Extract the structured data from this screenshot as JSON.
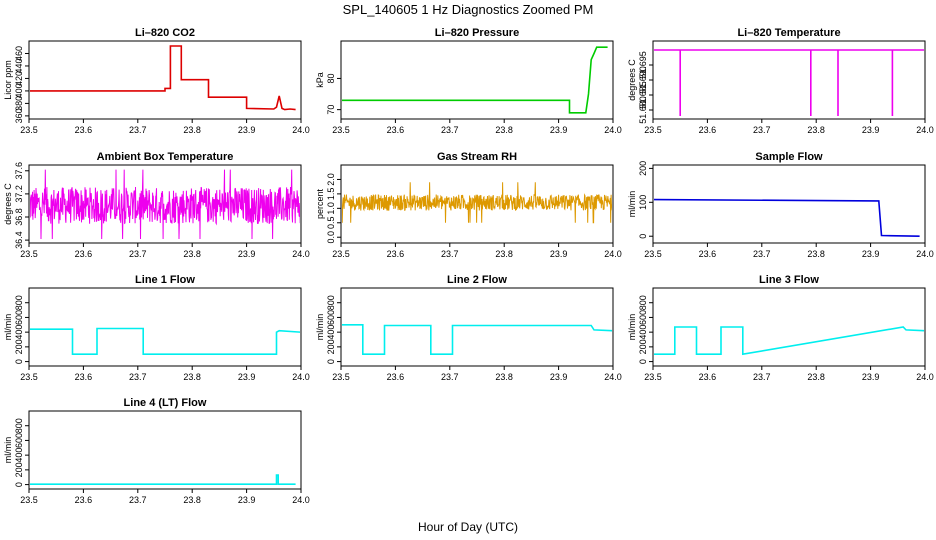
{
  "figure": {
    "title": "SPL_140605  1 Hz Diagnostics Zoomed PM",
    "xlabel": "Hour of Day (UTC)"
  },
  "chart_data": [
    {
      "id": "co2",
      "type": "line",
      "title": "Li–820 CO2",
      "ylabel": "Licor ppm",
      "color": "#dd0000",
      "xlim": [
        23.5,
        24.0
      ],
      "xticks": [
        23.5,
        23.6,
        23.7,
        23.8,
        23.9,
        24.0
      ],
      "ylim": [
        355,
        480
      ],
      "yticks": [
        360,
        380,
        400,
        420,
        440,
        460
      ],
      "x": [
        23.5,
        23.75,
        23.75,
        23.76,
        23.76,
        23.78,
        23.78,
        23.83,
        23.83,
        23.9,
        23.9,
        23.95,
        23.955,
        23.96,
        23.965,
        23.97,
        23.98,
        23.99
      ],
      "y": [
        400,
        400,
        404,
        404,
        472,
        472,
        418,
        418,
        390,
        390,
        372,
        371,
        374,
        392,
        372,
        370,
        371,
        370
      ]
    },
    {
      "id": "pressure",
      "type": "line",
      "title": "Li–820 Pressure",
      "ylabel": "kPa",
      "color": "#00cc00",
      "xlim": [
        23.5,
        24.0
      ],
      "xticks": [
        23.5,
        23.6,
        23.7,
        23.8,
        23.9,
        24.0
      ],
      "ylim": [
        67,
        92
      ],
      "yticks": [
        70,
        80
      ],
      "x": [
        23.5,
        23.92,
        23.92,
        23.95,
        23.955,
        23.96,
        23.965,
        23.97,
        23.98,
        23.99
      ],
      "y": [
        73,
        73,
        69,
        69,
        75,
        86,
        88,
        90,
        90,
        90
      ]
    },
    {
      "id": "li_temp",
      "type": "line",
      "title": "Li–820 Temperature",
      "ylabel": "degrees C",
      "color": "#ee00ee",
      "xlim": [
        23.5,
        24.0
      ],
      "xticks": [
        23.5,
        23.6,
        23.7,
        23.8,
        23.9,
        24.0
      ],
      "ylim": [
        51.677,
        51.703
      ],
      "yticks": [
        51.68,
        51.685,
        51.69,
        51.695
      ],
      "x": [
        23.5,
        23.55,
        23.55,
        23.55,
        23.79,
        23.79,
        23.79,
        23.84,
        23.84,
        23.84,
        23.94,
        23.94,
        23.94,
        24.0
      ],
      "y": [
        51.7,
        51.7,
        51.678,
        51.7,
        51.7,
        51.678,
        51.7,
        51.7,
        51.678,
        51.7,
        51.7,
        51.678,
        51.7,
        51.7
      ]
    },
    {
      "id": "box_temp",
      "type": "line",
      "title": "Ambient Box Temperature",
      "ylabel": "degrees C",
      "color": "#ee00ee",
      "xlim": [
        23.5,
        24.0
      ],
      "xticks": [
        23.5,
        23.6,
        23.7,
        23.8,
        23.9,
        24.0
      ],
      "ylim": [
        36.35,
        37.7
      ],
      "yticks": [
        36.4,
        36.8,
        37.2,
        37.6
      ],
      "noise": {
        "center": 37.0,
        "amplitude": 0.32,
        "min": 36.42,
        "max": 37.62,
        "x_start": 23.5,
        "x_end": 24.0
      }
    },
    {
      "id": "rh",
      "type": "line",
      "title": "Gas Stream RH",
      "ylabel": "percent",
      "color": "#dd9900",
      "xlim": [
        23.5,
        24.0
      ],
      "xticks": [
        23.5,
        23.6,
        23.7,
        23.8,
        23.9,
        24.0
      ],
      "ylim": [
        -0.2,
        2.5
      ],
      "yticks": [
        0.0,
        0.5,
        1.0,
        1.5,
        2.0
      ],
      "noise": {
        "center": 1.2,
        "amplitude": 0.28,
        "min": -0.1,
        "max": 2.4,
        "x_start": 23.5,
        "x_end": 24.0
      }
    },
    {
      "id": "sample_flow",
      "type": "line",
      "title": "Sample Flow",
      "ylabel": "ml/min",
      "color": "#0000dd",
      "xlim": [
        23.5,
        24.0
      ],
      "xticks": [
        23.5,
        23.6,
        23.7,
        23.8,
        23.9,
        24.0
      ],
      "ylim": [
        -20,
        210
      ],
      "yticks": [
        0,
        100,
        200
      ],
      "x": [
        23.5,
        23.91,
        23.915,
        23.92,
        23.99
      ],
      "y": [
        108,
        104,
        104,
        2,
        0
      ]
    },
    {
      "id": "line1",
      "type": "line",
      "title": "Line 1 Flow",
      "ylabel": "ml/min",
      "color": "#00eeee",
      "xlim": [
        23.5,
        24.0
      ],
      "xticks": [
        23.5,
        23.6,
        23.7,
        23.8,
        23.9,
        24.0
      ],
      "ylim": [
        -60,
        1000
      ],
      "yticks": [
        0,
        200,
        400,
        600,
        800
      ],
      "x": [
        23.5,
        23.5,
        23.58,
        23.58,
        23.625,
        23.625,
        23.71,
        23.71,
        23.955,
        23.955,
        23.96,
        24.0
      ],
      "y": [
        100,
        440,
        440,
        100,
        100,
        450,
        450,
        100,
        100,
        400,
        420,
        400
      ]
    },
    {
      "id": "line2",
      "type": "line",
      "title": "Line 2 Flow",
      "ylabel": "ml/min",
      "color": "#00eeee",
      "xlim": [
        23.5,
        24.0
      ],
      "xticks": [
        23.5,
        23.6,
        23.7,
        23.8,
        23.9,
        24.0
      ],
      "ylim": [
        -60,
        1000
      ],
      "yticks": [
        0,
        200,
        400,
        600,
        800
      ],
      "x": [
        23.5,
        23.54,
        23.54,
        23.58,
        23.58,
        23.665,
        23.665,
        23.705,
        23.705,
        23.96,
        23.965,
        24.0
      ],
      "y": [
        500,
        500,
        100,
        100,
        490,
        490,
        100,
        100,
        490,
        490,
        430,
        420
      ]
    },
    {
      "id": "line3",
      "type": "line",
      "title": "Line 3 Flow",
      "ylabel": "ml/min",
      "color": "#00eeee",
      "xlim": [
        23.5,
        24.0
      ],
      "xticks": [
        23.5,
        23.6,
        23.7,
        23.8,
        23.9,
        24.0
      ],
      "ylim": [
        -60,
        1000
      ],
      "yticks": [
        0,
        200,
        400,
        600,
        800
      ],
      "x": [
        23.5,
        23.5,
        23.54,
        23.54,
        23.58,
        23.58,
        23.625,
        23.625,
        23.665,
        23.665,
        23.96,
        23.965,
        24.0
      ],
      "y": [
        500,
        100,
        100,
        470,
        470,
        100,
        100,
        470,
        470,
        100,
        470,
        430,
        420
      ]
    },
    {
      "id": "line4",
      "type": "line",
      "title": "Line 4 (LT) Flow",
      "ylabel": "ml/min",
      "color": "#00eeee",
      "xlim": [
        23.5,
        24.0
      ],
      "xticks": [
        23.5,
        23.6,
        23.7,
        23.8,
        23.9,
        24.0
      ],
      "ylim": [
        -60,
        1000
      ],
      "yticks": [
        0,
        200,
        400,
        600,
        800
      ],
      "x": [
        23.5,
        23.955,
        23.955,
        23.958,
        23.958,
        23.99
      ],
      "y": [
        5,
        5,
        130,
        130,
        5,
        5
      ]
    }
  ]
}
